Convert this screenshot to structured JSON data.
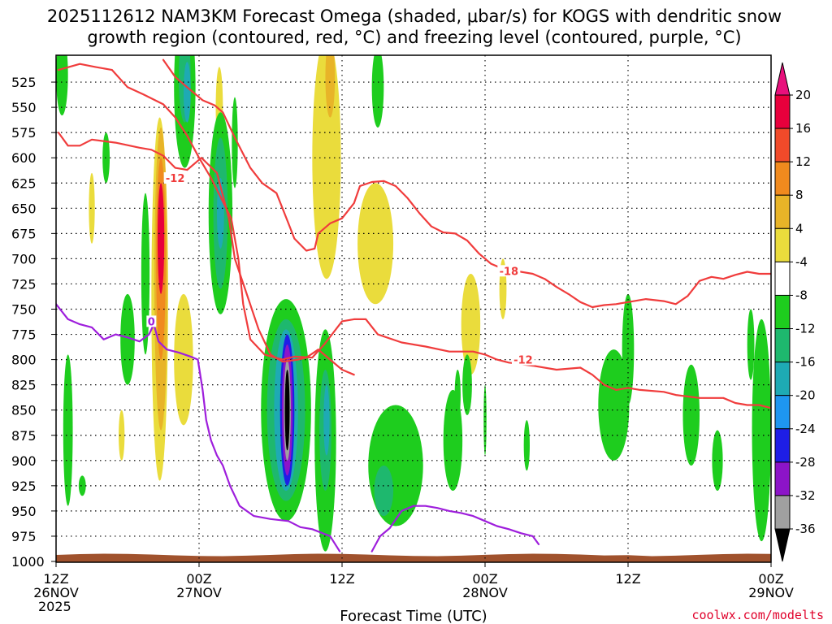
{
  "chart_data": {
    "type": "heatmap",
    "title_line1": "2025112612 NAM3KM Forecast Omega (shaded, μbar/s) for KOGS with dendritic snow",
    "title_line2": "growth region (contoured, red, °C) and freezing level (contoured, purple, °C)",
    "xlabel": "Forecast Time (UTC)",
    "credit": "coolwx.com/modelts",
    "x_ticks": [
      {
        "h": 0,
        "line1": "12Z",
        "line2": "26NOV",
        "line3": "2025"
      },
      {
        "h": 12,
        "line1": "00Z",
        "line2": "27NOV",
        "line3": ""
      },
      {
        "h": 24,
        "line1": "12Z",
        "line2": "",
        "line3": ""
      },
      {
        "h": 36,
        "line1": "00Z",
        "line2": "28NOV",
        "line3": ""
      },
      {
        "h": 48,
        "line1": "12Z",
        "line2": "",
        "line3": ""
      },
      {
        "h": 60,
        "line1": "00Z",
        "line2": "29NOV",
        "line3": ""
      }
    ],
    "xlim": [
      0,
      60
    ],
    "ylim": [
      500,
      1000
    ],
    "y_ticks": [
      525,
      550,
      575,
      600,
      625,
      650,
      675,
      700,
      725,
      750,
      775,
      800,
      825,
      850,
      875,
      900,
      925,
      950,
      975,
      1000
    ],
    "colorbar": {
      "labels": [
        "20",
        "16",
        "12",
        "8",
        "4",
        "-4",
        "-8",
        "-12",
        "-16",
        "-20",
        "-24",
        "-28",
        "-32",
        "-36"
      ],
      "colors": [
        "#e8003c",
        "#f04a2a",
        "#f08a1e",
        "#e8b428",
        "#eadc3c",
        "#ffffff",
        "#1ecd1e",
        "#1eb86e",
        "#1eaab4",
        "#1e96f0",
        "#1e1ee6",
        "#8c14c8",
        "#a0a0a0",
        "#000000"
      ],
      "top_arrow_color": "#e8107c",
      "bottom_arrow_color": "#000000"
    },
    "contour_labels": [
      {
        "text": "-12",
        "h": 10.0,
        "p": 620,
        "color": "#f03c3c"
      },
      {
        "text": "-18",
        "h": 38.0,
        "p": 712,
        "color": "#f03c3c"
      },
      {
        "text": "-12",
        "h": 39.2,
        "p": 800,
        "color": "#f03c3c"
      },
      {
        "text": "0",
        "h": 8.0,
        "p": 762,
        "color": "#9e1edc"
      }
    ],
    "series": [
      {
        "name": "",
        "color": "#f03c3c",
        "kind": "red",
        "points": [
          [
            0.2,
            513
          ],
          [
            2.0,
            507
          ],
          [
            3.3,
            510
          ],
          [
            4.7,
            513
          ],
          [
            6.0,
            530
          ],
          [
            7.3,
            537
          ],
          [
            9.0,
            547
          ],
          [
            10.0,
            560
          ],
          [
            11.0,
            578
          ],
          [
            12.0,
            600
          ],
          [
            13.0,
            620
          ],
          [
            14.7,
            660
          ],
          [
            15.3,
            700
          ],
          [
            15.7,
            745
          ],
          [
            16.3,
            780
          ],
          [
            17.5,
            795
          ],
          [
            19.0,
            800
          ],
          [
            20.0,
            797
          ],
          [
            21.5,
            798
          ],
          [
            22.5,
            785
          ],
          [
            24.0,
            762
          ],
          [
            25.0,
            760
          ],
          [
            26.0,
            760
          ],
          [
            27.0,
            775
          ],
          [
            29.0,
            783
          ],
          [
            31.0,
            787
          ],
          [
            33.0,
            792
          ],
          [
            35.0,
            792
          ],
          [
            36.0,
            795
          ],
          [
            37.0,
            800
          ],
          [
            38.0,
            803
          ],
          [
            40.0,
            806
          ],
          [
            42.0,
            810
          ],
          [
            44.0,
            808
          ],
          [
            45.0,
            815
          ],
          [
            46.0,
            825
          ],
          [
            47.0,
            830
          ],
          [
            48.0,
            828
          ],
          [
            49.0,
            830
          ],
          [
            51.0,
            832
          ],
          [
            52.0,
            835
          ],
          [
            54.0,
            838
          ],
          [
            56.0,
            838
          ],
          [
            57.0,
            843
          ],
          [
            58.0,
            845
          ],
          [
            59.0,
            845
          ],
          [
            60.0,
            848
          ]
        ]
      },
      {
        "name": "",
        "color": "#f03c3c",
        "kind": "red",
        "points": [
          [
            0.2,
            575
          ],
          [
            1.0,
            588
          ],
          [
            2.0,
            588
          ],
          [
            3.0,
            582
          ],
          [
            5.0,
            585
          ],
          [
            7.0,
            590
          ],
          [
            8.0,
            592
          ],
          [
            9.0,
            598
          ],
          [
            10.0,
            610
          ],
          [
            11.0,
            612
          ],
          [
            12.2,
            600
          ],
          [
            13.5,
            615
          ],
          [
            14.5,
            660
          ],
          [
            15.0,
            700
          ],
          [
            16.0,
            735
          ],
          [
            17.0,
            770
          ],
          [
            18.0,
            795
          ],
          [
            19.0,
            802
          ],
          [
            20.3,
            800
          ],
          [
            21.0,
            798
          ],
          [
            22.0,
            790
          ],
          [
            23.0,
            800
          ],
          [
            24.0,
            810
          ],
          [
            25.0,
            815
          ]
        ]
      },
      {
        "name": "",
        "color": "#f03c3c",
        "kind": "red",
        "points": [
          [
            9.0,
            503
          ],
          [
            10.0,
            520
          ],
          [
            11.0,
            530
          ],
          [
            12.3,
            543
          ],
          [
            13.3,
            548
          ],
          [
            14.0,
            555
          ],
          [
            15.0,
            580
          ],
          [
            16.3,
            610
          ],
          [
            17.3,
            625
          ],
          [
            18.5,
            635
          ],
          [
            19.5,
            665
          ],
          [
            20.0,
            680
          ],
          [
            21.0,
            692
          ],
          [
            21.7,
            690
          ],
          [
            22.0,
            675
          ],
          [
            23.0,
            665
          ],
          [
            24.0,
            660
          ],
          [
            25.0,
            645
          ],
          [
            25.5,
            628
          ],
          [
            26.5,
            624
          ],
          [
            27.5,
            623
          ],
          [
            28.5,
            628
          ],
          [
            29.5,
            640
          ],
          [
            30.5,
            655
          ],
          [
            31.5,
            668
          ],
          [
            32.5,
            674
          ],
          [
            33.5,
            675
          ],
          [
            34.5,
            682
          ],
          [
            35.5,
            695
          ],
          [
            36.5,
            705
          ],
          [
            37.5,
            710
          ],
          [
            38.5,
            712
          ],
          [
            40.0,
            715
          ],
          [
            41.0,
            720
          ],
          [
            42.0,
            728
          ],
          [
            43.0,
            735
          ],
          [
            44.0,
            743
          ],
          [
            45.0,
            748
          ],
          [
            46.0,
            746
          ],
          [
            47.0,
            745
          ],
          [
            48.0,
            743
          ],
          [
            49.5,
            740
          ],
          [
            51.0,
            742
          ],
          [
            52.0,
            745
          ],
          [
            53.0,
            737
          ],
          [
            54.0,
            722
          ],
          [
            55.0,
            718
          ],
          [
            56.0,
            720
          ],
          [
            57.0,
            716
          ],
          [
            58.0,
            713
          ],
          [
            59.0,
            715
          ],
          [
            60.0,
            715
          ]
        ]
      },
      {
        "name": "",
        "color": "#9e1edc",
        "kind": "purple",
        "points": [
          [
            0.0,
            745
          ],
          [
            1.0,
            760
          ],
          [
            2.0,
            765
          ],
          [
            3.0,
            768
          ],
          [
            4.0,
            780
          ],
          [
            5.0,
            775
          ],
          [
            6.0,
            778
          ],
          [
            7.0,
            782
          ],
          [
            7.8,
            775
          ],
          [
            8.2,
            765
          ],
          [
            8.6,
            782
          ],
          [
            9.3,
            790
          ],
          [
            10.3,
            793
          ],
          [
            11.3,
            797
          ],
          [
            11.9,
            800
          ],
          [
            12.3,
            830
          ],
          [
            12.6,
            860
          ],
          [
            13.0,
            880
          ],
          [
            13.5,
            895
          ],
          [
            14.0,
            905
          ],
          [
            14.6,
            925
          ],
          [
            15.4,
            945
          ],
          [
            16.6,
            955
          ],
          [
            18.0,
            958
          ],
          [
            19.5,
            960
          ],
          [
            20.5,
            966
          ],
          [
            21.5,
            968
          ],
          [
            23.0,
            975
          ],
          [
            23.8,
            990
          ]
        ]
      },
      {
        "name": "",
        "color": "#9e1edc",
        "kind": "purple",
        "points": [
          [
            26.5,
            990
          ],
          [
            27.2,
            975
          ],
          [
            28.0,
            967
          ],
          [
            29.0,
            950
          ],
          [
            30.0,
            945
          ],
          [
            31.0,
            945
          ],
          [
            32.0,
            947
          ],
          [
            33.0,
            950
          ],
          [
            34.0,
            952
          ],
          [
            35.0,
            955
          ],
          [
            36.0,
            960
          ],
          [
            37.0,
            965
          ],
          [
            38.0,
            968
          ],
          [
            39.0,
            972
          ],
          [
            40.0,
            975
          ],
          [
            40.5,
            983
          ]
        ]
      }
    ],
    "shaded_regions": [
      {
        "h": 0.5,
        "p": 518,
        "rx": 0.5,
        "ry": 40,
        "color": "#1ecd1e"
      },
      {
        "h": 10.8,
        "p": 530,
        "rx": 0.9,
        "ry": 80,
        "color": "#1ecd1e"
      },
      {
        "h": 10.8,
        "p": 520,
        "rx": 0.5,
        "ry": 45,
        "color": "#1eb86e"
      },
      {
        "h": 11.0,
        "p": 535,
        "rx": 0.3,
        "ry": 30,
        "color": "#1eaab4"
      },
      {
        "h": 13.7,
        "p": 550,
        "rx": 0.3,
        "ry": 40,
        "color": "#eadc3c"
      },
      {
        "h": 15.0,
        "p": 585,
        "rx": 0.25,
        "ry": 45,
        "color": "#1ecd1e"
      },
      {
        "h": 13.8,
        "p": 655,
        "rx": 1.0,
        "ry": 100,
        "color": "#1ecd1e"
      },
      {
        "h": 13.8,
        "p": 655,
        "rx": 0.6,
        "ry": 75,
        "color": "#1eb86e"
      },
      {
        "h": 13.8,
        "p": 655,
        "rx": 0.3,
        "ry": 35,
        "color": "#1eaab4"
      },
      {
        "h": 22.7,
        "p": 600,
        "rx": 1.2,
        "ry": 120,
        "color": "#eadc3c"
      },
      {
        "h": 23.0,
        "p": 520,
        "rx": 0.4,
        "ry": 40,
        "color": "#e8b428"
      },
      {
        "h": 27.0,
        "p": 530,
        "rx": 0.5,
        "ry": 40,
        "color": "#1ecd1e"
      },
      {
        "h": 4.2,
        "p": 600,
        "rx": 0.3,
        "ry": 25,
        "color": "#1ecd1e"
      },
      {
        "h": 3.0,
        "p": 650,
        "rx": 0.25,
        "ry": 35,
        "color": "#eadc3c"
      },
      {
        "h": 8.7,
        "p": 740,
        "rx": 0.7,
        "ry": 180,
        "color": "#eadc3c"
      },
      {
        "h": 8.8,
        "p": 720,
        "rx": 0.55,
        "ry": 150,
        "color": "#e8b428"
      },
      {
        "h": 8.8,
        "p": 700,
        "rx": 0.4,
        "ry": 100,
        "color": "#f08a1e"
      },
      {
        "h": 8.8,
        "p": 680,
        "rx": 0.28,
        "ry": 55,
        "color": "#e8003c"
      },
      {
        "h": 7.5,
        "p": 715,
        "rx": 0.35,
        "ry": 80,
        "color": "#1ecd1e"
      },
      {
        "h": 6.0,
        "p": 780,
        "rx": 0.6,
        "ry": 45,
        "color": "#1ecd1e"
      },
      {
        "h": 1.0,
        "p": 870,
        "rx": 0.4,
        "ry": 75,
        "color": "#1ecd1e"
      },
      {
        "h": 5.5,
        "p": 875,
        "rx": 0.25,
        "ry": 25,
        "color": "#eadc3c"
      },
      {
        "h": 10.7,
        "p": 800,
        "rx": 0.8,
        "ry": 65,
        "color": "#eadc3c"
      },
      {
        "h": 26.8,
        "p": 685,
        "rx": 1.5,
        "ry": 60,
        "color": "#eadc3c"
      },
      {
        "h": 26.9,
        "p": 660,
        "rx": 0.8,
        "ry": 25,
        "color": "#eadc3c"
      },
      {
        "h": 34.8,
        "p": 765,
        "rx": 0.8,
        "ry": 50,
        "color": "#eadc3c"
      },
      {
        "h": 37.5,
        "p": 730,
        "rx": 0.3,
        "ry": 30,
        "color": "#eadc3c"
      },
      {
        "h": 19.3,
        "p": 850,
        "rx": 2.1,
        "ry": 110,
        "color": "#1ecd1e"
      },
      {
        "h": 19.3,
        "p": 850,
        "rx": 1.6,
        "ry": 90,
        "color": "#1eb86e"
      },
      {
        "h": 19.3,
        "p": 850,
        "rx": 1.0,
        "ry": 80,
        "color": "#1eaab4"
      },
      {
        "h": 19.4,
        "p": 850,
        "rx": 0.6,
        "ry": 75,
        "color": "#1e1ee6"
      },
      {
        "h": 19.4,
        "p": 850,
        "rx": 0.45,
        "ry": 65,
        "color": "#8c14c8"
      },
      {
        "h": 19.4,
        "p": 850,
        "rx": 0.3,
        "ry": 50,
        "color": "#a0a0a0"
      },
      {
        "h": 19.4,
        "p": 850,
        "rx": 0.2,
        "ry": 40,
        "color": "#000000"
      },
      {
        "h": 22.6,
        "p": 880,
        "rx": 0.9,
        "ry": 110,
        "color": "#1ecd1e"
      },
      {
        "h": 22.6,
        "p": 870,
        "rx": 0.5,
        "ry": 60,
        "color": "#1eb86e"
      },
      {
        "h": 22.7,
        "p": 860,
        "rx": 0.25,
        "ry": 35,
        "color": "#1eaab4"
      },
      {
        "h": 28.5,
        "p": 905,
        "rx": 2.3,
        "ry": 60,
        "color": "#1ecd1e"
      },
      {
        "h": 27.5,
        "p": 930,
        "rx": 0.8,
        "ry": 25,
        "color": "#1eb86e"
      },
      {
        "h": 33.3,
        "p": 880,
        "rx": 0.8,
        "ry": 50,
        "color": "#1ecd1e"
      },
      {
        "h": 34.5,
        "p": 825,
        "rx": 0.4,
        "ry": 30,
        "color": "#1ecd1e"
      },
      {
        "h": 33.7,
        "p": 835,
        "rx": 0.25,
        "ry": 25,
        "color": "#1ecd1e"
      },
      {
        "h": 36.0,
        "p": 860,
        "rx": 0.12,
        "ry": 35,
        "color": "#1ecd1e"
      },
      {
        "h": 2.2,
        "p": 925,
        "rx": 0.3,
        "ry": 10,
        "color": "#1ecd1e"
      },
      {
        "h": 39.5,
        "p": 885,
        "rx": 0.25,
        "ry": 25,
        "color": "#1ecd1e"
      },
      {
        "h": 46.8,
        "p": 845,
        "rx": 1.3,
        "ry": 55,
        "color": "#1ecd1e"
      },
      {
        "h": 48.0,
        "p": 790,
        "rx": 0.5,
        "ry": 55,
        "color": "#1ecd1e"
      },
      {
        "h": 53.3,
        "p": 855,
        "rx": 0.7,
        "ry": 50,
        "color": "#1ecd1e"
      },
      {
        "h": 55.5,
        "p": 900,
        "rx": 0.45,
        "ry": 30,
        "color": "#1ecd1e"
      },
      {
        "h": 59.2,
        "p": 870,
        "rx": 0.8,
        "ry": 110,
        "color": "#1ecd1e"
      },
      {
        "h": 58.3,
        "p": 785,
        "rx": 0.3,
        "ry": 35,
        "color": "#1ecd1e"
      }
    ],
    "terrain_color": "#a0522d"
  }
}
